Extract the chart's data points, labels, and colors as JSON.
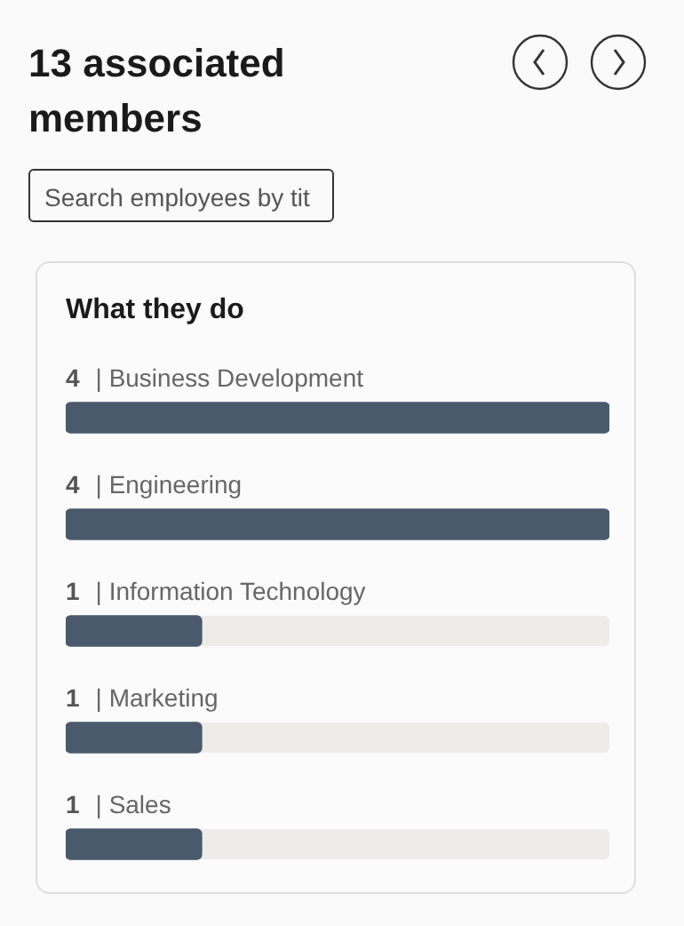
{
  "chart_data": {
    "type": "bar",
    "orientation": "horizontal",
    "title": "13 associated members",
    "subtitle": "What they do",
    "annotations": [
      "Search employees by tit"
    ],
    "categories": [
      "| Business Development",
      "| Engineering",
      "| Information Technology",
      "| Marketing",
      "| Sales"
    ],
    "values": [
      4,
      4,
      1,
      1,
      1
    ],
    "color": "#4a5a6c",
    "data_labels": true
  }
}
